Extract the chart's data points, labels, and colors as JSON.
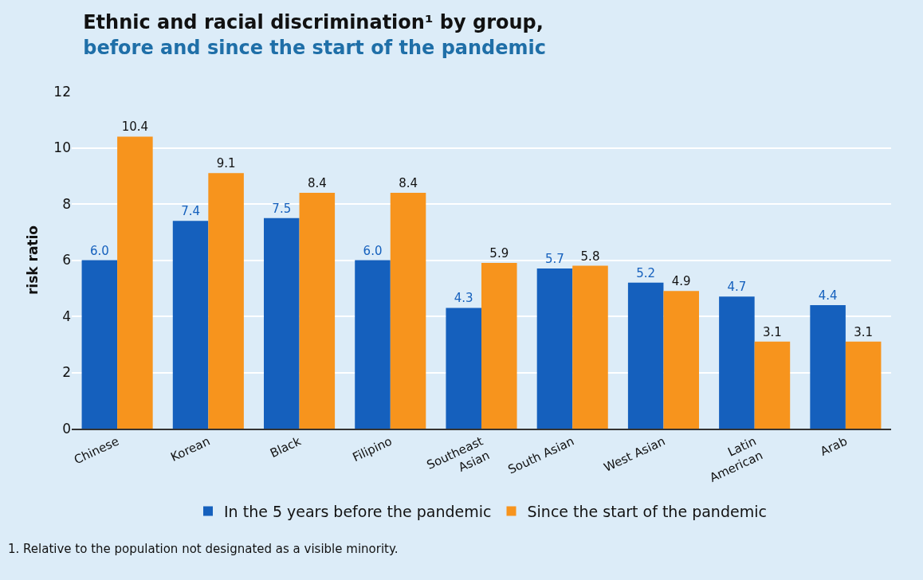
{
  "chart_data": {
    "type": "bar",
    "title": "Ethnic and racial discrimination¹ by group,",
    "subtitle": "before and since the start of the pandemic",
    "ylabel": "risk ratio",
    "categories": [
      "Chinese",
      "Korean",
      "Black",
      "Filipino",
      "Southeast\nAsian",
      "South Asian",
      "West Asian",
      "Latin\nAmerican",
      "Arab"
    ],
    "series": [
      {
        "name": "In the 5 years before the pandemic",
        "color": "#1560bd",
        "values": [
          6.0,
          7.4,
          7.5,
          6.0,
          4.3,
          5.7,
          5.2,
          4.7,
          4.4
        ],
        "value_labels": [
          "6.0",
          "7.4",
          "7.5",
          "6.0",
          "4.3",
          "5.7",
          "5.2",
          "4.7",
          "4.4"
        ]
      },
      {
        "name": "Since the start of the pandemic",
        "color": "#f7941d",
        "values": [
          10.4,
          9.1,
          8.4,
          8.4,
          5.9,
          5.8,
          4.9,
          3.1,
          3.1
        ],
        "value_labels": [
          "10.4",
          "9.1",
          "8.4",
          "8.4",
          "5.9",
          "5.8",
          "4.9",
          "3.1",
          "3.1"
        ]
      }
    ],
    "ylim": [
      0,
      12
    ],
    "yticks": [
      0,
      2,
      4,
      6,
      8,
      10,
      12
    ],
    "grid": "y",
    "legend": "bottom",
    "annotations": [
      "1. Relative to the population not designated as a visible minority."
    ]
  }
}
